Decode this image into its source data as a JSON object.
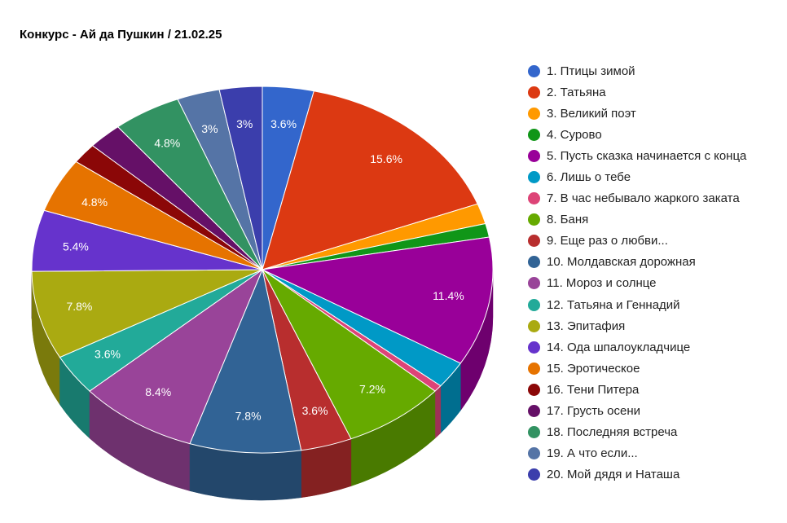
{
  "title": "Конкурс - Ай да Пушкин / 21.02.25",
  "chart_data": {
    "type": "pie",
    "title": "Конкурс - Ай да Пушкин / 21.02.25",
    "style": "3d",
    "legend_position": "right",
    "slices": [
      {
        "label": "1. Птицы зимой",
        "value": 3.6,
        "percent_label": "3.6%",
        "color": "#3366cc"
      },
      {
        "label": "2. Татьяна",
        "value": 15.6,
        "percent_label": "15.6%",
        "color": "#dc3912"
      },
      {
        "label": "3. Великий поэт",
        "value": 1.8,
        "percent_label": "",
        "color": "#ff9900"
      },
      {
        "label": "4. Сурово",
        "value": 1.2,
        "percent_label": "",
        "color": "#109618"
      },
      {
        "label": "5. Пусть сказка начинается с конца",
        "value": 11.4,
        "percent_label": "11.4%",
        "color": "#990099"
      },
      {
        "label": "6. Лишь о тебе",
        "value": 2.4,
        "percent_label": "",
        "color": "#0099c6"
      },
      {
        "label": "7. В час небывало жаркого заката",
        "value": 0.6,
        "percent_label": "",
        "color": "#dd4477"
      },
      {
        "label": "8. Баня",
        "value": 7.2,
        "percent_label": "7.2%",
        "color": "#66aa00"
      },
      {
        "label": "9. Еще раз о любви...",
        "value": 3.6,
        "percent_label": "3.6%",
        "color": "#b82e2e"
      },
      {
        "label": "10. Молдавская дорожная",
        "value": 7.8,
        "percent_label": "7.8%",
        "color": "#316395"
      },
      {
        "label": "11. Мороз и солнце",
        "value": 8.4,
        "percent_label": "8.4%",
        "color": "#994499"
      },
      {
        "label": "12. Татьяна и Геннадий",
        "value": 3.6,
        "percent_label": "3.6%",
        "color": "#22aa99"
      },
      {
        "label": "13. Эпитафия",
        "value": 7.8,
        "percent_label": "7.8%",
        "color": "#aaaa11"
      },
      {
        "label": "14. Ода шпалоукладчице",
        "value": 5.4,
        "percent_label": "5.4%",
        "color": "#6633cc"
      },
      {
        "label": "15. Эротическое",
        "value": 4.8,
        "percent_label": "4.8%",
        "color": "#e67300"
      },
      {
        "label": "16. Тени Питера",
        "value": 1.8,
        "percent_label": "",
        "color": "#8b0707"
      },
      {
        "label": "17. Грусть осени",
        "value": 2.4,
        "percent_label": "",
        "color": "#651067"
      },
      {
        "label": "18. Последняя встреча",
        "value": 4.8,
        "percent_label": "4.8%",
        "color": "#329262"
      },
      {
        "label": "19. А что если...",
        "value": 3.0,
        "percent_label": "3%",
        "color": "#5574a6"
      },
      {
        "label": "20. Мой дядя и Наташа",
        "value": 3.0,
        "percent_label": "3%",
        "color": "#3b3eac"
      }
    ]
  }
}
